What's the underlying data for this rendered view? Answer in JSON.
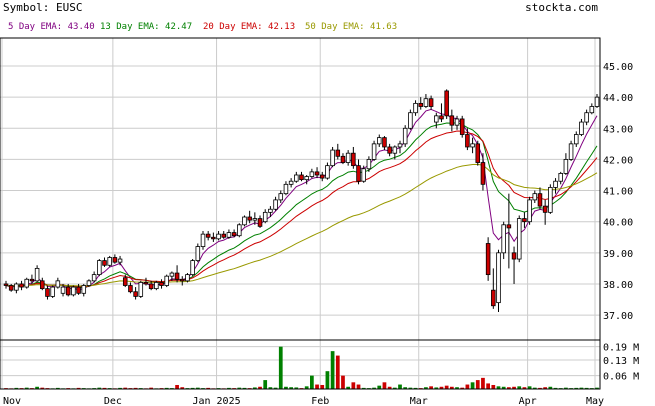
{
  "header": {
    "symbol_label": "Symbol: EUSC",
    "site": "stockta.com"
  },
  "legend": [
    {
      "label": "5 Day EMA: 43.40",
      "color": "#800080"
    },
    {
      "label": "13 Day EMA: 42.47",
      "color": "#008000"
    },
    {
      "label": "20 Day EMA: 42.13",
      "color": "#cc0000"
    },
    {
      "label": "50 Day EMA: 41.63",
      "color": "#999900"
    }
  ],
  "colors": {
    "up": "#ffffff",
    "down": "#cc0000",
    "vol_up": "#008000",
    "vol_down": "#cc0000",
    "grid": "#cccccc"
  },
  "chart_data": {
    "type": "candlestick",
    "y_axis": {
      "ticks": [
        "45.00",
        "44.00",
        "43.00",
        "42.00",
        "41.00",
        "40.00",
        "39.00",
        "38.00",
        "37.00"
      ],
      "range": [
        36.2,
        45.9
      ]
    },
    "x_axis": {
      "ticks": [
        "Nov",
        "Dec",
        "Jan 2025",
        "Feb",
        "Mar",
        "Apr",
        "May"
      ]
    },
    "volume_axis": {
      "ticks": [
        "0.19 M",
        "0.13 M",
        "0.06 M"
      ],
      "range": [
        0,
        0.22
      ]
    },
    "series": [
      [
        38.0,
        38.1,
        37.85,
        37.95,
        0.004
      ],
      [
        37.95,
        38.0,
        37.75,
        37.8,
        0.003
      ],
      [
        37.8,
        38.05,
        37.7,
        38.0,
        0.005
      ],
      [
        38.0,
        38.1,
        37.8,
        37.9,
        0.004
      ],
      [
        37.9,
        38.2,
        37.85,
        38.15,
        0.006
      ],
      [
        38.15,
        38.3,
        38.0,
        38.1,
        0.004
      ],
      [
        38.1,
        38.6,
        38.05,
        38.5,
        0.01
      ],
      [
        38.1,
        38.2,
        37.8,
        37.85,
        0.006
      ],
      [
        37.85,
        37.95,
        37.5,
        37.6,
        0.004
      ],
      [
        37.6,
        37.95,
        37.55,
        37.9,
        0.003
      ],
      [
        37.9,
        38.2,
        37.85,
        38.1,
        0.005
      ],
      [
        37.7,
        38.0,
        37.6,
        37.9,
        0.003
      ],
      [
        37.9,
        38.0,
        37.6,
        37.65,
        0.004
      ],
      [
        37.65,
        37.95,
        37.6,
        37.9,
        0.003
      ],
      [
        37.9,
        38.0,
        37.65,
        37.7,
        0.005
      ],
      [
        37.7,
        38.0,
        37.6,
        37.95,
        0.004
      ],
      [
        37.95,
        38.15,
        37.9,
        38.1,
        0.003
      ],
      [
        38.1,
        38.4,
        38.05,
        38.3,
        0.004
      ],
      [
        38.3,
        38.8,
        38.25,
        38.75,
        0.006
      ],
      [
        38.75,
        38.85,
        38.55,
        38.6,
        0.005
      ],
      [
        38.6,
        38.9,
        38.55,
        38.85,
        0.004
      ],
      [
        38.85,
        38.95,
        38.65,
        38.7,
        0.003
      ],
      [
        38.7,
        38.9,
        38.6,
        38.8,
        0.005
      ],
      [
        38.2,
        38.3,
        37.9,
        37.95,
        0.006
      ],
      [
        37.95,
        38.05,
        37.7,
        37.75,
        0.004
      ],
      [
        37.75,
        37.9,
        37.5,
        37.6,
        0.005
      ],
      [
        37.6,
        38.1,
        37.55,
        38.05,
        0.004
      ],
      [
        38.05,
        38.2,
        37.95,
        38.0,
        0.003
      ],
      [
        38.0,
        38.1,
        37.8,
        37.85,
        0.006
      ],
      [
        37.85,
        38.1,
        37.8,
        38.05,
        0.003
      ],
      [
        38.05,
        38.15,
        37.85,
        37.95,
        0.004
      ],
      [
        37.95,
        38.3,
        37.9,
        38.25,
        0.005
      ],
      [
        38.25,
        38.4,
        38.1,
        38.35,
        0.004
      ],
      [
        38.35,
        38.6,
        38.05,
        38.15,
        0.018
      ],
      [
        38.15,
        38.25,
        37.95,
        38.1,
        0.008
      ],
      [
        38.1,
        38.35,
        38.05,
        38.3,
        0.004
      ],
      [
        38.3,
        38.8,
        38.25,
        38.75,
        0.005
      ],
      [
        38.75,
        39.3,
        38.7,
        39.2,
        0.006
      ],
      [
        39.2,
        39.7,
        39.1,
        39.6,
        0.004
      ],
      [
        39.6,
        39.7,
        39.4,
        39.5,
        0.005
      ],
      [
        39.5,
        39.65,
        39.35,
        39.45,
        0.003
      ],
      [
        39.45,
        39.7,
        39.4,
        39.6,
        0.004
      ],
      [
        39.6,
        39.7,
        39.45,
        39.5,
        0.003
      ],
      [
        39.5,
        39.75,
        39.45,
        39.65,
        0.005
      ],
      [
        39.65,
        39.75,
        39.5,
        39.55,
        0.004
      ],
      [
        39.55,
        39.95,
        39.5,
        39.9,
        0.006
      ],
      [
        39.9,
        40.2,
        39.85,
        40.15,
        0.005
      ],
      [
        40.15,
        40.35,
        39.95,
        40.05,
        0.004
      ],
      [
        40.05,
        40.3,
        39.9,
        40.1,
        0.007
      ],
      [
        40.1,
        40.2,
        39.8,
        39.85,
        0.01
      ],
      [
        40.0,
        40.4,
        39.95,
        40.3,
        0.04
      ],
      [
        40.3,
        40.5,
        40.15,
        40.4,
        0.008
      ],
      [
        40.4,
        40.8,
        40.35,
        40.7,
        0.006
      ],
      [
        40.7,
        41.0,
        40.6,
        40.9,
        0.19
      ],
      [
        40.9,
        41.3,
        40.85,
        41.2,
        0.01
      ],
      [
        41.2,
        41.4,
        41.1,
        41.3,
        0.008
      ],
      [
        41.3,
        41.6,
        41.25,
        41.5,
        0.007
      ],
      [
        41.5,
        41.6,
        41.3,
        41.35,
        0.004
      ],
      [
        41.35,
        41.5,
        41.2,
        41.45,
        0.012
      ],
      [
        41.45,
        41.7,
        41.4,
        41.6,
        0.06
      ],
      [
        41.6,
        41.75,
        41.4,
        41.5,
        0.02
      ],
      [
        41.5,
        41.6,
        41.3,
        41.4,
        0.018
      ],
      [
        41.4,
        41.9,
        41.35,
        41.8,
        0.08
      ],
      [
        41.8,
        42.4,
        41.75,
        42.3,
        0.17
      ],
      [
        42.3,
        42.5,
        42.0,
        42.1,
        0.15
      ],
      [
        42.1,
        42.2,
        41.85,
        41.9,
        0.06
      ],
      [
        41.9,
        42.3,
        41.8,
        42.2,
        0.01
      ],
      [
        42.2,
        42.4,
        41.7,
        41.8,
        0.03
      ],
      [
        41.8,
        42.0,
        41.2,
        41.3,
        0.02
      ],
      [
        41.3,
        41.8,
        41.25,
        41.7,
        0.005
      ],
      [
        41.7,
        42.1,
        41.6,
        42.0,
        0.004
      ],
      [
        42.0,
        42.6,
        41.95,
        42.5,
        0.006
      ],
      [
        42.5,
        42.8,
        42.4,
        42.7,
        0.015
      ],
      [
        42.7,
        42.75,
        42.3,
        42.4,
        0.03
      ],
      [
        42.4,
        42.5,
        42.1,
        42.2,
        0.01
      ],
      [
        42.2,
        42.45,
        42.0,
        42.4,
        0.006
      ],
      [
        42.4,
        42.6,
        42.2,
        42.5,
        0.02
      ],
      [
        42.5,
        43.1,
        42.4,
        43.0,
        0.008
      ],
      [
        43.0,
        43.6,
        42.95,
        43.5,
        0.006
      ],
      [
        43.5,
        43.9,
        43.4,
        43.8,
        0.005
      ],
      [
        43.8,
        44.0,
        43.6,
        43.7,
        0.004
      ],
      [
        43.7,
        44.1,
        43.65,
        43.95,
        0.008
      ],
      [
        43.95,
        44.05,
        43.6,
        43.7,
        0.012
      ],
      [
        43.2,
        43.5,
        43.0,
        43.4,
        0.007
      ],
      [
        43.4,
        43.8,
        43.2,
        43.3,
        0.01
      ],
      [
        44.2,
        44.25,
        43.3,
        43.4,
        0.015
      ],
      [
        43.4,
        43.6,
        42.9,
        43.1,
        0.01
      ],
      [
        43.1,
        43.4,
        42.95,
        43.3,
        0.008
      ],
      [
        43.3,
        43.4,
        42.7,
        42.8,
        0.006
      ],
      [
        42.8,
        43.0,
        42.3,
        42.4,
        0.02
      ],
      [
        42.4,
        42.7,
        42.2,
        42.5,
        0.03
      ],
      [
        42.5,
        42.6,
        41.8,
        41.9,
        0.04
      ],
      [
        41.9,
        42.2,
        41.0,
        41.2,
        0.05
      ],
      [
        39.3,
        39.5,
        38.1,
        38.3,
        0.025
      ],
      [
        37.8,
        38.5,
        37.2,
        37.3,
        0.018
      ],
      [
        37.4,
        39.1,
        37.1,
        39.0,
        0.012
      ],
      [
        39.0,
        40.0,
        38.8,
        39.9,
        0.01
      ],
      [
        39.9,
        40.9,
        38.5,
        39.8,
        0.008
      ],
      [
        39.0,
        39.2,
        38.0,
        38.8,
        0.01
      ],
      [
        38.8,
        40.2,
        38.7,
        40.1,
        0.012
      ],
      [
        40.1,
        40.3,
        39.8,
        40.0,
        0.008
      ],
      [
        40.0,
        40.8,
        39.9,
        40.7,
        0.012
      ],
      [
        40.7,
        41.0,
        40.6,
        40.9,
        0.006
      ],
      [
        40.9,
        41.1,
        40.4,
        40.5,
        0.005
      ],
      [
        40.5,
        40.7,
        39.9,
        40.3,
        0.008
      ],
      [
        40.3,
        41.2,
        40.25,
        41.1,
        0.01
      ],
      [
        41.1,
        41.4,
        40.9,
        41.3,
        0.005
      ],
      [
        41.3,
        41.6,
        41.2,
        41.55,
        0.004
      ],
      [
        41.55,
        42.2,
        41.5,
        42.0,
        0.006
      ],
      [
        42.0,
        42.6,
        41.95,
        42.5,
        0.004
      ],
      [
        42.5,
        42.9,
        42.4,
        42.8,
        0.005
      ],
      [
        42.8,
        43.3,
        42.75,
        43.2,
        0.006
      ],
      [
        43.2,
        43.6,
        43.1,
        43.5,
        0.005
      ],
      [
        43.5,
        43.8,
        43.45,
        43.7,
        0.004
      ],
      [
        43.7,
        44.1,
        43.65,
        44.0,
        0.006
      ]
    ]
  }
}
